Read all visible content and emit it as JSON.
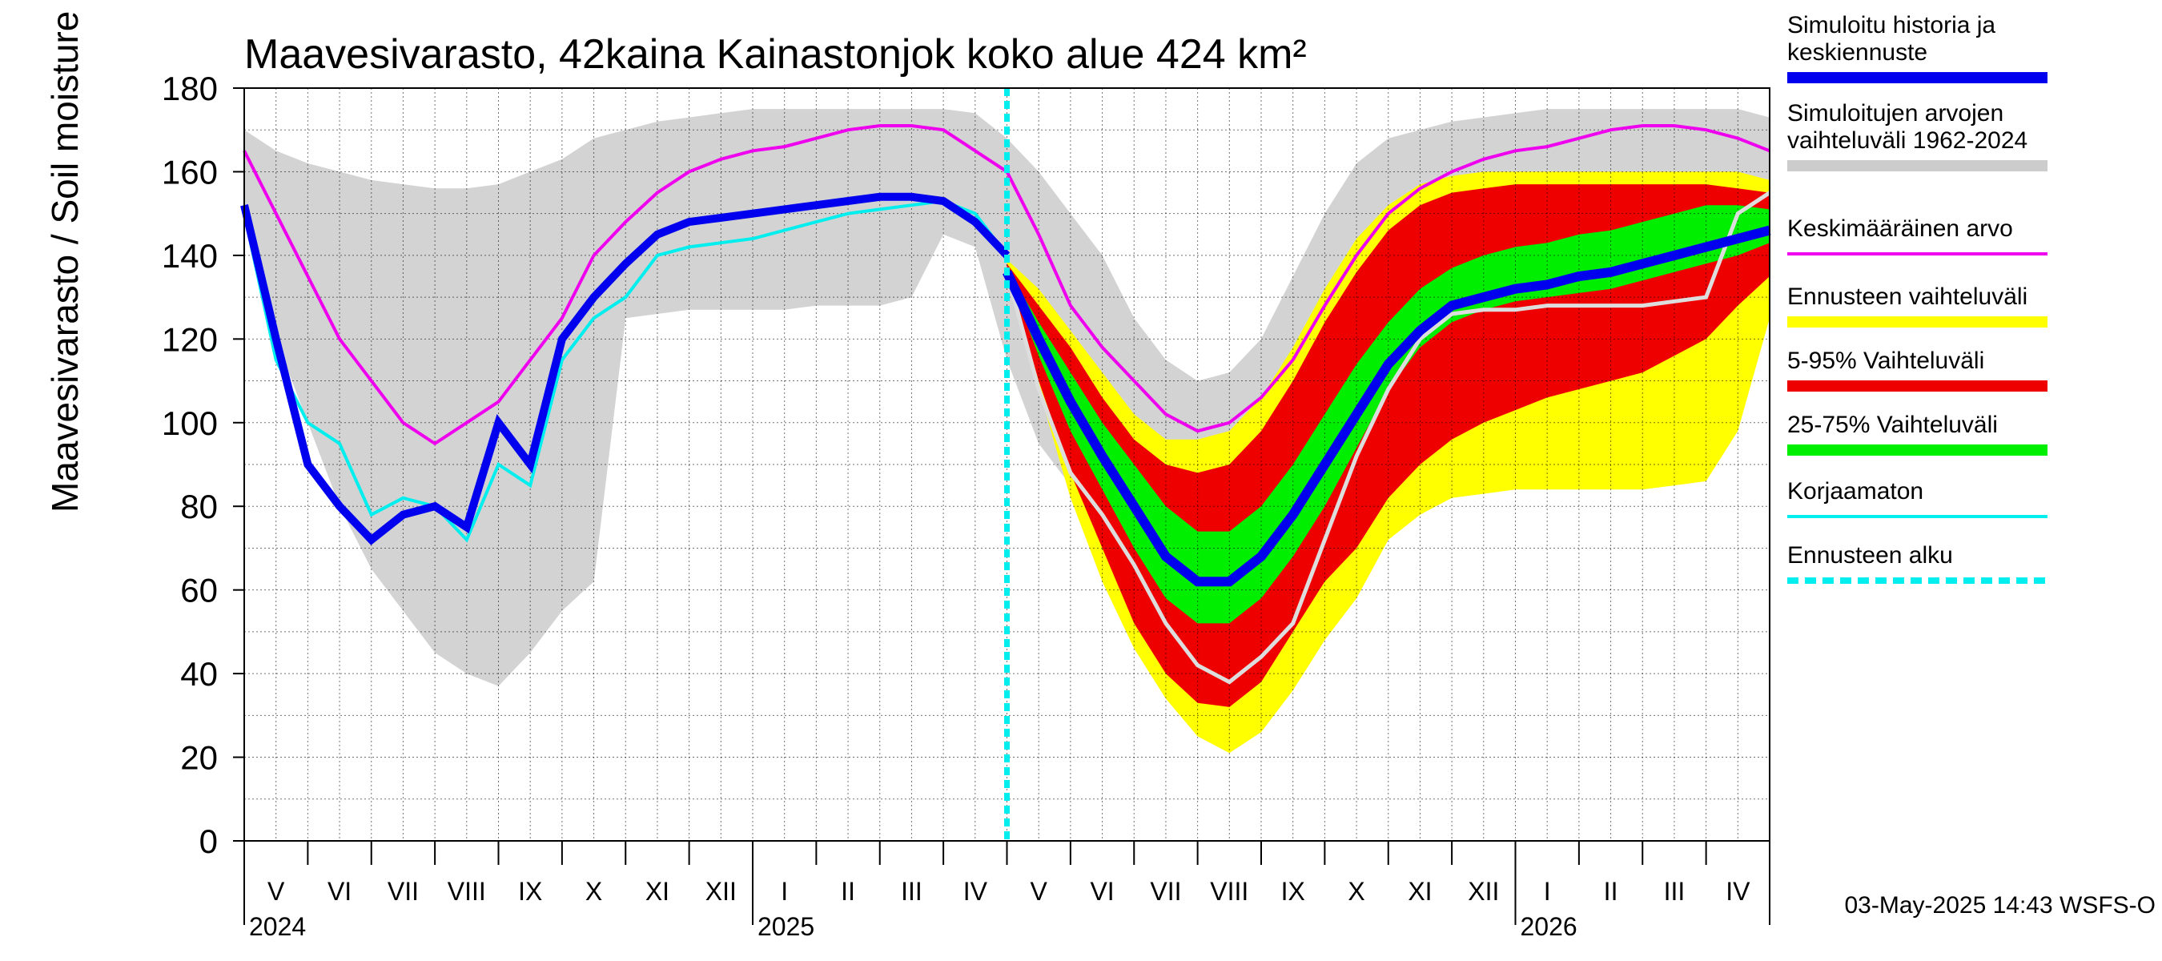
{
  "chart_data": {
    "type": "area",
    "title": "Maavesivarasto, 42kaina Kainastonjok koko alue 424 km²",
    "ylabel": "Maavesivarasto / Soil moisture   mm",
    "ylim": [
      0,
      180
    ],
    "yticks": [
      "0",
      "20",
      "40",
      "60",
      "80",
      "100",
      "120",
      "140",
      "160",
      "180"
    ],
    "months": [
      "V",
      "VI",
      "VII",
      "VIII",
      "IX",
      "X",
      "XI",
      "XII",
      "I",
      "II",
      "III",
      "IV",
      "V",
      "VI",
      "VII",
      "VIII",
      "IX",
      "X",
      "XI",
      "XII",
      "I",
      "II",
      "III",
      "IV"
    ],
    "years": [
      "2024",
      "2025",
      "2026"
    ],
    "grid": true,
    "legend_position": "right",
    "forecast_start_month_index": 12,
    "legend": [
      {
        "label": "Simuloitu historia ja keskiennuste",
        "color": "#0000ee"
      },
      {
        "label": "Simuloitujen arvojen vaihteluväli 1962-2024",
        "color": "#cccccc"
      },
      {
        "label": "Keskimääräinen arvo",
        "color": "#ee00ee"
      },
      {
        "label": "Ennusteen vaihteluväli",
        "color": "#ffff00"
      },
      {
        "label": "5-95% Vaihteluväli",
        "color": "#ee0000"
      },
      {
        "label": "25-75% Vaihteluväli",
        "color": "#00ee00"
      },
      {
        "label": "Korjaamaton",
        "color": "#00eeee"
      },
      {
        "label": "Ennusteen alku",
        "color": "#00eeee"
      }
    ],
    "x_months": [
      0,
      0.5,
      1,
      1.5,
      2,
      2.5,
      3,
      3.5,
      4,
      4.5,
      5,
      5.5,
      6,
      6.5,
      7,
      7.5,
      8,
      8.5,
      9,
      9.5,
      10,
      10.5,
      11,
      11.5,
      12,
      12.5,
      13,
      13.5,
      14,
      14.5,
      15,
      15.5,
      16,
      16.5,
      17,
      17.5,
      18,
      18.5,
      19,
      19.5,
      20,
      20.5,
      21,
      21.5,
      22,
      22.5,
      23,
      23.5,
      24
    ],
    "hist_range_low": [
      150,
      120,
      100,
      80,
      65,
      55,
      45,
      40,
      37,
      45,
      55,
      62,
      125,
      126,
      127,
      127,
      127,
      127,
      128,
      128,
      128,
      130,
      145,
      142,
      115,
      95,
      85,
      75,
      65,
      55,
      48,
      45,
      50,
      62,
      75,
      90,
      100,
      108,
      115,
      120,
      125,
      128,
      129,
      129,
      130,
      132,
      134,
      135,
      140
    ],
    "hist_range_high": [
      170,
      165,
      162,
      160,
      158,
      157,
      156,
      156,
      157,
      160,
      163,
      168,
      170,
      172,
      173,
      174,
      175,
      175,
      175,
      175,
      175,
      175,
      175,
      174,
      168,
      160,
      150,
      140,
      125,
      115,
      110,
      112,
      120,
      135,
      150,
      162,
      168,
      170,
      172,
      173,
      174,
      175,
      175,
      175,
      175,
      175,
      175,
      175,
      173
    ],
    "mean": [
      165,
      150,
      135,
      120,
      110,
      100,
      95,
      100,
      105,
      115,
      125,
      140,
      148,
      155,
      160,
      163,
      165,
      166,
      168,
      170,
      171,
      171,
      170,
      165,
      160,
      145,
      128,
      118,
      110,
      102,
      98,
      100,
      106,
      115,
      128,
      140,
      150,
      156,
      160,
      163,
      165,
      166,
      168,
      170,
      171,
      171,
      170,
      168,
      165
    ],
    "simulated": [
      152,
      120,
      90,
      80,
      72,
      78,
      80,
      75,
      100,
      90,
      120,
      130,
      138,
      145,
      148,
      149,
      150,
      151,
      152,
      153,
      154,
      154,
      153,
      148,
      140
    ],
    "uncorrected": [
      150,
      115,
      100,
      95,
      78,
      82,
      80,
      72,
      90,
      85,
      115,
      125,
      130,
      140,
      142,
      143,
      144,
      146,
      148,
      150,
      151,
      152,
      153,
      150,
      140
    ],
    "forecast_mean": [
      136,
      120,
      105,
      92,
      80,
      68,
      62,
      62,
      68,
      78,
      90,
      102,
      114,
      122,
      128,
      130,
      132,
      133,
      135,
      136,
      138,
      140,
      142,
      144,
      146
    ],
    "p25": [
      136,
      116,
      98,
      84,
      70,
      58,
      52,
      52,
      58,
      68,
      80,
      94,
      108,
      118,
      124,
      127,
      129,
      130,
      131,
      132,
      134,
      136,
      138,
      140,
      143
    ],
    "p75": [
      137,
      124,
      112,
      100,
      90,
      80,
      74,
      74,
      80,
      90,
      102,
      114,
      124,
      132,
      137,
      140,
      142,
      143,
      145,
      146,
      148,
      150,
      152,
      152,
      151
    ],
    "p5": [
      136,
      110,
      88,
      70,
      52,
      40,
      33,
      32,
      38,
      50,
      62,
      70,
      82,
      90,
      96,
      100,
      103,
      106,
      108,
      110,
      112,
      116,
      120,
      128,
      135
    ],
    "p95": [
      138,
      128,
      118,
      106,
      96,
      90,
      88,
      90,
      98,
      110,
      124,
      136,
      146,
      152,
      155,
      156,
      157,
      157,
      157,
      157,
      157,
      157,
      157,
      156,
      155
    ],
    "env_low": [
      136,
      108,
      82,
      62,
      46,
      34,
      25,
      21,
      26,
      36,
      48,
      58,
      72,
      78,
      82,
      83,
      84,
      84,
      84,
      84,
      84,
      85,
      86,
      98,
      125
    ],
    "env_high": [
      139,
      132,
      122,
      112,
      102,
      96,
      96,
      98,
      106,
      118,
      132,
      144,
      152,
      157,
      159,
      160,
      160,
      160,
      160,
      160,
      160,
      160,
      160,
      160,
      158
    ],
    "forecast_uncorrected": [
      136,
      108,
      88,
      78,
      66,
      52,
      42,
      38,
      44,
      52,
      72,
      92,
      108,
      120,
      126,
      127,
      127,
      128,
      128,
      128,
      128,
      129,
      130,
      150,
      155
    ]
  },
  "footer": "03-May-2025 14:43 WSFS-O"
}
